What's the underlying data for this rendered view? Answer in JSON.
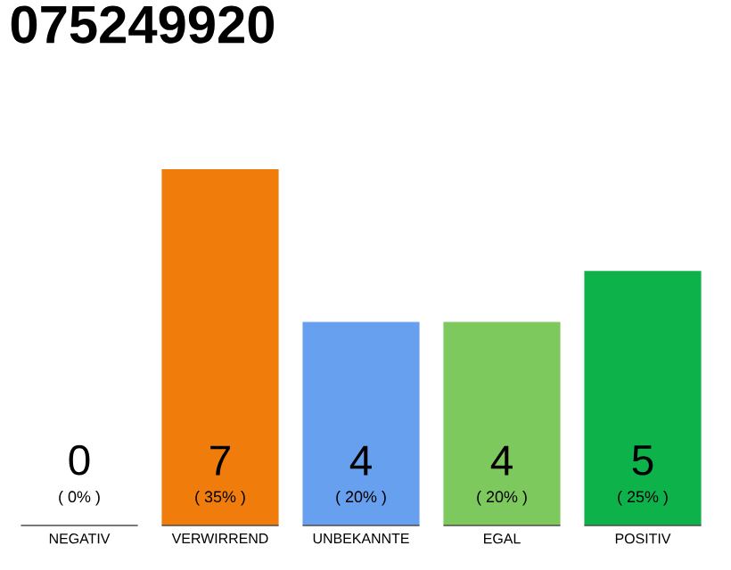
{
  "chart_data": {
    "type": "bar",
    "title": "075249920",
    "categories": [
      "NEGATIV",
      "VERWIRREND",
      "UNBEKANNTE",
      "EGAL",
      "POSITIV"
    ],
    "values": [
      0,
      7,
      4,
      4,
      5
    ],
    "colors": [
      "#eeeeee",
      "#f07c0c",
      "#66a0ee",
      "#7ec95e",
      "#0db34a"
    ],
    "value_labels": [
      "0",
      "7",
      "4",
      "4",
      "5"
    ],
    "annotations": [
      "( 0% )",
      "( 35% )",
      "( 20% )",
      "( 20% )",
      "( 25% )"
    ]
  }
}
